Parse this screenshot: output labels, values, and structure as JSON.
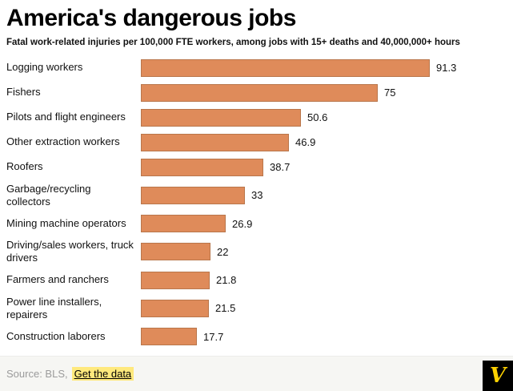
{
  "chart_data": {
    "type": "bar",
    "orientation": "horizontal",
    "title": "America's dangerous jobs",
    "subtitle": "Fatal work-related injuries per 100,000 FTE workers, among jobs with 15+ deaths and 40,000,000+ hours",
    "categories": [
      "Logging workers",
      "Fishers",
      "Pilots and flight engineers",
      "Other extraction workers",
      "Roofers",
      "Garbage/recycling collectors",
      "Mining machine operators",
      "Driving/sales workers, truck drivers",
      "Farmers and ranchers",
      "Power line installers, repairers",
      "Construction laborers"
    ],
    "values": [
      91.3,
      75,
      50.6,
      46.9,
      38.7,
      33,
      26.9,
      22,
      21.8,
      21.5,
      17.7
    ],
    "value_labels": [
      "91.3",
      "75",
      "50.6",
      "46.9",
      "38.7",
      "33",
      "26.9",
      "22",
      "21.8",
      "21.5",
      "17.7"
    ],
    "xlim": [
      0,
      100
    ],
    "grid": false,
    "legend": false
  },
  "colors": {
    "bar": "#df8b5a",
    "bar_border": "#b9764b",
    "link_highlight": "#ffe97d",
    "logo_bg": "#000000",
    "logo_letter": "#ffd200"
  },
  "footer": {
    "source": "Source: BLS,",
    "link_label": "Get the data",
    "logo_letter": "V"
  }
}
